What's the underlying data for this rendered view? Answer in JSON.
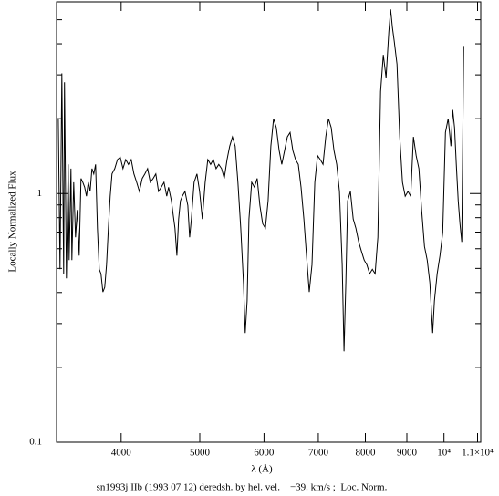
{
  "chart_data": {
    "type": "line",
    "caption": "sn1993j IIb (1993 07 12) deredsh. by hel. vel.    −39. km/s ;  Loc. Norm.",
    "xlabel": "λ (Å)",
    "ylabel": "Locally Normalized Flux",
    "xscale": "log",
    "yscale": "log",
    "xlim": [
      3330,
      11100
    ],
    "ylim": [
      0.1,
      5.9
    ],
    "xticks": [
      4000,
      5000,
      6000,
      7000,
      8000,
      9000,
      {
        "value": 10000,
        "label": "10⁴"
      },
      {
        "value": 11000,
        "label": "1.1×10⁴"
      }
    ],
    "yticks": [
      0.1,
      1
    ],
    "yminorticks": [
      0.2,
      0.3,
      0.4,
      0.5,
      0.6,
      0.7,
      0.8,
      0.9,
      2,
      3,
      4,
      5
    ],
    "series": [
      {
        "color": "#000000",
        "x": [
          3346,
          3363,
          3380,
          3398,
          3406,
          3424,
          3442,
          3451,
          3469,
          3478,
          3496,
          3514,
          3532,
          3551,
          3569,
          3588,
          3606,
          3625,
          3644,
          3663,
          3682,
          3701,
          3720,
          3740,
          3759,
          3778,
          3798,
          3818,
          3838,
          3858,
          3878,
          3898,
          3928,
          3959,
          3990,
          4021,
          4052,
          4084,
          4116,
          4148,
          4180,
          4213,
          4246,
          4279,
          4312,
          4346,
          4380,
          4414,
          4448,
          4483,
          4518,
          4553,
          4577,
          4613,
          4636,
          4660,
          4685,
          4709,
          4733,
          4758,
          4795,
          4833,
          4858,
          4883,
          4921,
          4960,
          4998,
          5037,
          5077,
          5116,
          5156,
          5196,
          5237,
          5277,
          5319,
          5360,
          5402,
          5444,
          5486,
          5529,
          5572,
          5616,
          5660,
          5689,
          5719,
          5749,
          5794,
          5839,
          5885,
          5931,
          5977,
          6024,
          6071,
          6118,
          6166,
          6214,
          6263,
          6311,
          6361,
          6411,
          6461,
          6511,
          6562,
          6614,
          6665,
          6718,
          6770,
          6823,
          6876,
          6930,
          6984,
          7039,
          7094,
          7149,
          7205,
          7262,
          7318,
          7376,
          7433,
          7491,
          7530,
          7569,
          7608,
          7668,
          7728,
          7788,
          7849,
          7910,
          7972,
          8034,
          8097,
          8160,
          8224,
          8288,
          8353,
          8418,
          8484,
          8550,
          8594,
          8639,
          8684,
          8752,
          8820,
          8889,
          8958,
          9028,
          9099,
          9170,
          9241,
          9314,
          9386,
          9460,
          9534,
          9608,
          9683,
          9733,
          9809,
          9886,
          9963,
          10041,
          10119,
          10198,
          10251,
          10304,
          10357,
          10411,
          10465,
          10519,
          10574
        ],
        "values": [
          2.0,
          0.496,
          3.04,
          0.476,
          2.8,
          0.456,
          1.31,
          0.54,
          1.26,
          0.54,
          1.11,
          0.667,
          0.859,
          0.563,
          1.15,
          1.11,
          1.06,
          0.975,
          1.11,
          1.02,
          1.26,
          1.2,
          1.31,
          0.726,
          0.496,
          0.476,
          0.402,
          0.42,
          0.518,
          0.726,
          0.975,
          1.2,
          1.26,
          1.37,
          1.4,
          1.26,
          1.37,
          1.31,
          1.37,
          1.2,
          1.11,
          1.02,
          1.15,
          1.2,
          1.26,
          1.11,
          1.15,
          1.2,
          1.02,
          1.06,
          1.11,
          0.975,
          1.06,
          0.935,
          0.824,
          0.726,
          0.563,
          0.79,
          0.935,
          0.975,
          1.02,
          0.896,
          0.667,
          0.79,
          1.11,
          1.2,
          1.02,
          0.79,
          1.11,
          1.37,
          1.31,
          1.37,
          1.26,
          1.31,
          1.26,
          1.15,
          1.37,
          1.55,
          1.69,
          1.55,
          1.11,
          0.726,
          0.438,
          0.275,
          0.37,
          0.79,
          1.11,
          1.06,
          1.15,
          0.896,
          0.757,
          0.726,
          0.935,
          1.55,
          2.0,
          1.84,
          1.49,
          1.31,
          1.49,
          1.69,
          1.76,
          1.49,
          1.37,
          1.31,
          1.06,
          0.79,
          0.563,
          0.402,
          0.518,
          1.11,
          1.42,
          1.37,
          1.31,
          1.69,
          2.0,
          1.84,
          1.49,
          1.31,
          1.02,
          0.518,
          0.232,
          0.438,
          0.935,
          1.02,
          0.79,
          0.726,
          0.639,
          0.588,
          0.54,
          0.518,
          0.476,
          0.496,
          0.476,
          0.667,
          2.57,
          3.61,
          2.92,
          4.45,
          5.5,
          4.64,
          4.09,
          3.31,
          1.69,
          1.11,
          0.975,
          1.02,
          0.975,
          1.69,
          1.42,
          1.26,
          0.859,
          0.613,
          0.54,
          0.438,
          0.275,
          0.37,
          0.476,
          0.563,
          0.696,
          1.76,
          2.0,
          1.55,
          2.17,
          1.84,
          1.31,
          0.935,
          0.757,
          0.639,
          3.92
        ]
      }
    ]
  }
}
